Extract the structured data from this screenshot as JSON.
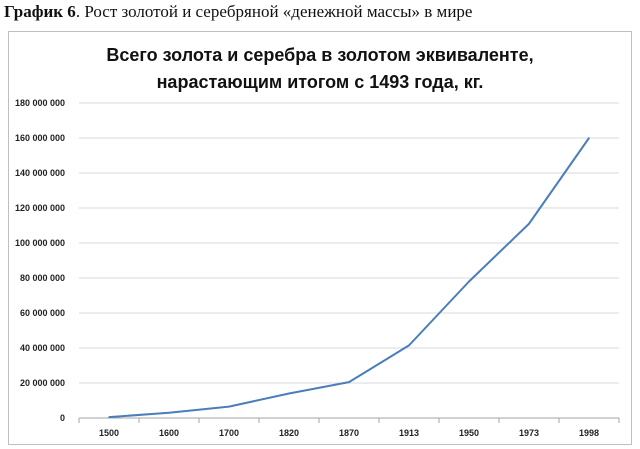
{
  "caption": {
    "label": "График 6",
    "text": ". Рост золотой и серебряной «денежной массы» в мире"
  },
  "colors": {
    "line": "#4a7ebb",
    "grid": "#d9d9d9",
    "axis": "#a6a6a6"
  },
  "chart_data": {
    "type": "line",
    "title": [
      "Всего золота и серебра в золотом эквиваленте,",
      "нарастающим итогом с 1493 года, кг."
    ],
    "xlabel": "",
    "ylabel": "",
    "categories": [
      "1500",
      "1600",
      "1700",
      "1820",
      "1870",
      "1913",
      "1950",
      "1973",
      "1998"
    ],
    "series": [
      {
        "values": [
          500000,
          3000000,
          6500000,
          14000000,
          20500000,
          41500000,
          78000000,
          111000000,
          160000000
        ]
      }
    ],
    "ylim": [
      0,
      180000000
    ],
    "yticks": [
      0,
      20000000,
      40000000,
      60000000,
      80000000,
      100000000,
      120000000,
      140000000,
      160000000,
      180000000
    ],
    "ytick_labels": [
      "0",
      "20 000 000",
      "40 000 000",
      "60 000 000",
      "80 000 000",
      "100 000 000",
      "120 000 000",
      "140 000 000",
      "160 000 000",
      "180 000 000"
    ],
    "grid": true,
    "legend": "none"
  }
}
